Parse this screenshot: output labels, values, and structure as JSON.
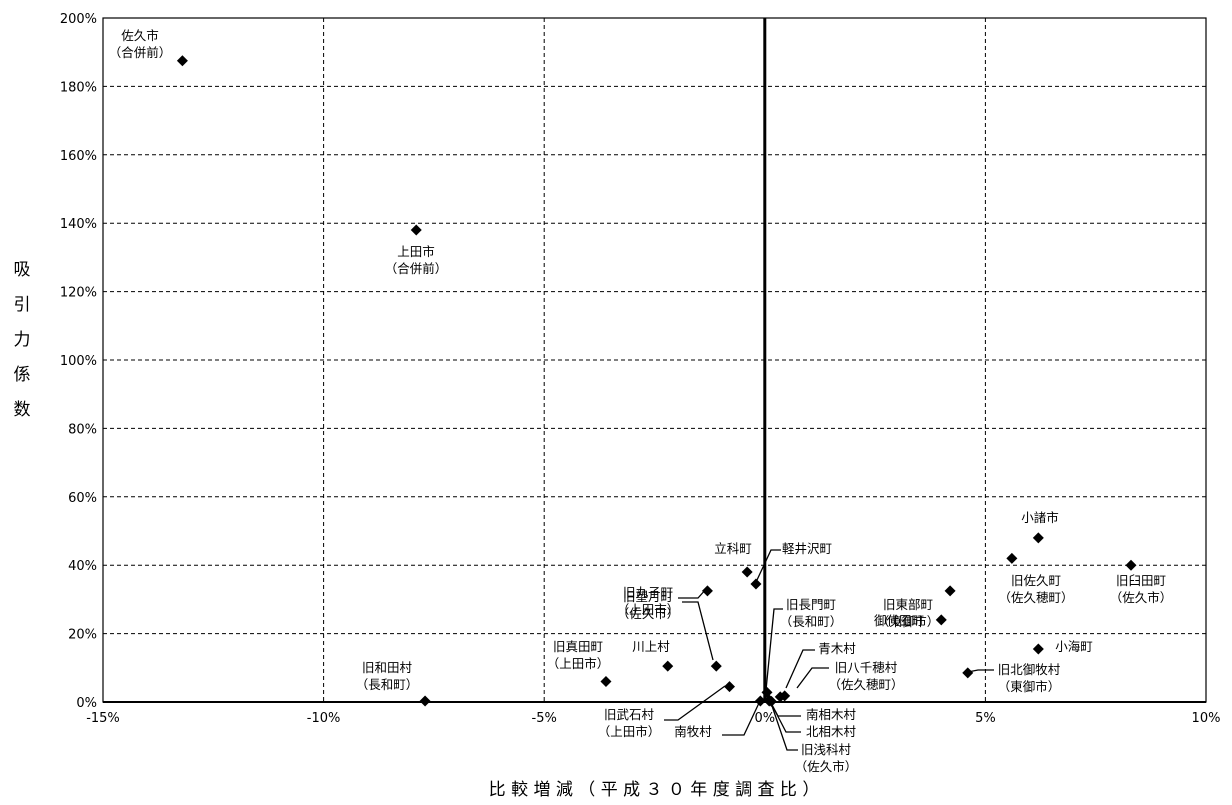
{
  "chart_data": {
    "type": "scatter",
    "title": "",
    "xlabel": "比 較 増 減 （ 平 成 ３ ０ 年 度 調 査 比 ）",
    "ylabel": "吸引力係数",
    "xlim": [
      -15,
      10
    ],
    "ylim": [
      0,
      200
    ],
    "x_ticks": [
      -15,
      -10,
      -5,
      0,
      5,
      10
    ],
    "x_tick_labels": [
      "-15%",
      "-10%",
      "-5%",
      "0%",
      "5%",
      "10%"
    ],
    "y_ticks": [
      0,
      20,
      40,
      60,
      80,
      100,
      120,
      140,
      160,
      180,
      200
    ],
    "y_tick_labels": [
      "0%",
      "20%",
      "40%",
      "60%",
      "80%",
      "100%",
      "120%",
      "140%",
      "160%",
      "180%",
      "200%"
    ],
    "grid": true,
    "grid_style": "dashed",
    "marker_color": "#000000",
    "points": [
      {
        "x": -13.2,
        "y": 187.5,
        "label": [
          "佐久市",
          "（合併前）"
        ]
      },
      {
        "x": -7.9,
        "y": 138,
        "label": [
          "上田市",
          "（合併前）"
        ]
      },
      {
        "x": -7.7,
        "y": 0.3,
        "label": [
          "旧和田村",
          "（長和町）"
        ]
      },
      {
        "x": -3.6,
        "y": 6,
        "label": [
          "旧真田町",
          "（上田市）"
        ]
      },
      {
        "x": -2.2,
        "y": 10.5,
        "label": [
          "川上村"
        ]
      },
      {
        "x": -1.3,
        "y": 32.5,
        "label": [
          "旧丸子町",
          "（上田市）"
        ]
      },
      {
        "x": -1.1,
        "y": 10.5,
        "label": [
          "旧望月町",
          "（佐久市）"
        ]
      },
      {
        "x": -0.8,
        "y": 4.5,
        "label": [
          "旧武石村",
          "（上田市）"
        ]
      },
      {
        "x": -0.4,
        "y": 38,
        "label": [
          "立科町"
        ]
      },
      {
        "x": -0.2,
        "y": 34.5,
        "label": [
          "軽井沢町"
        ]
      },
      {
        "x": -0.1,
        "y": 0.3,
        "label": [
          "南牧村"
        ]
      },
      {
        "x": 0.05,
        "y": 2.8,
        "label": [
          "旧長門町",
          "（長和町）"
        ]
      },
      {
        "x": 0.1,
        "y": 0.6,
        "label": [
          "南相木村"
        ]
      },
      {
        "x": 0.1,
        "y": 0.3,
        "label": [
          "北相木村"
        ]
      },
      {
        "x": 0.15,
        "y": 0.2,
        "label": [
          "旧浅科村",
          "（佐久市）"
        ]
      },
      {
        "x": 0.35,
        "y": 1.5,
        "label": [
          "青木村"
        ]
      },
      {
        "x": 0.45,
        "y": 1.8,
        "label": [
          "旧八千穂村",
          "（佐久穂町）"
        ]
      },
      {
        "x": 4.0,
        "y": 24,
        "label": [
          "御代田町"
        ]
      },
      {
        "x": 4.2,
        "y": 32.5,
        "label": [
          "旧東部町",
          "（東御市）"
        ]
      },
      {
        "x": 4.6,
        "y": 8.5,
        "label": [
          "旧北御牧村",
          "（東御市）"
        ]
      },
      {
        "x": 5.6,
        "y": 42,
        "label": [
          "旧佐久町",
          "（佐久穂町）"
        ]
      },
      {
        "x": 6.2,
        "y": 48,
        "label": [
          "小諸市"
        ]
      },
      {
        "x": 6.2,
        "y": 15.5,
        "label": [
          "小海町"
        ]
      },
      {
        "x": 8.3,
        "y": 40,
        "label": [
          "旧臼田町",
          "（佐久市）"
        ]
      }
    ]
  }
}
